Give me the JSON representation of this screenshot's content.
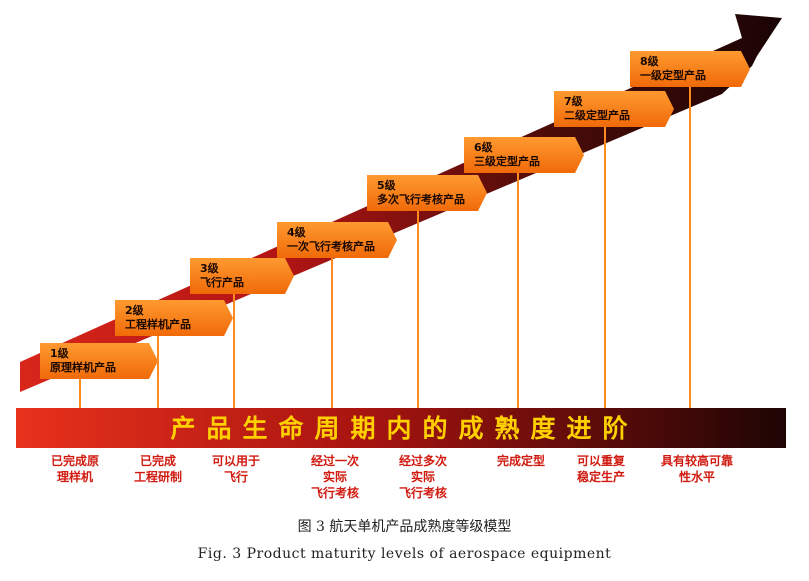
{
  "levels": [
    {
      "num": "1级",
      "name": [
        "原理样机产品"
      ],
      "desc": [
        "已完成原",
        "理样机"
      ]
    },
    {
      "num": "2级",
      "name": [
        "工程样机产品"
      ],
      "desc": [
        "已完成",
        "工程研制"
      ]
    },
    {
      "num": "3级",
      "name": [
        "飞行产品"
      ],
      "desc": [
        "可以用于",
        "飞行"
      ]
    },
    {
      "num": "4级",
      "name": [
        "一次飞行考核产品"
      ],
      "desc": [
        "经过一次",
        "实际",
        "飞行考核"
      ]
    },
    {
      "num": "5级",
      "name": [
        "多次飞行考核产品"
      ],
      "desc": [
        "经过多次",
        "实际",
        "飞行考核"
      ]
    },
    {
      "num": "6级",
      "name": [
        "三级定型产品"
      ],
      "desc": [
        "完成定型"
      ]
    },
    {
      "num": "7级",
      "name": [
        "二级定型产品"
      ],
      "desc": [
        "可以重复",
        "稳定生产"
      ]
    },
    {
      "num": "8级",
      "name": [
        "一级定型产品"
      ],
      "desc": [
        "具有较高可靠",
        "性水平"
      ]
    }
  ],
  "banner": "产品生命周期内的成熟度进阶",
  "caption_cn": "图 3   航天单机产品成熟度等级模型",
  "caption_en": "Fig. 3   Product maturity levels of aerospace equipment",
  "colors": {
    "orange": "#ff7b10",
    "red": "#c71a12",
    "dark": "#2a0a06",
    "gold": "#ffd000"
  }
}
